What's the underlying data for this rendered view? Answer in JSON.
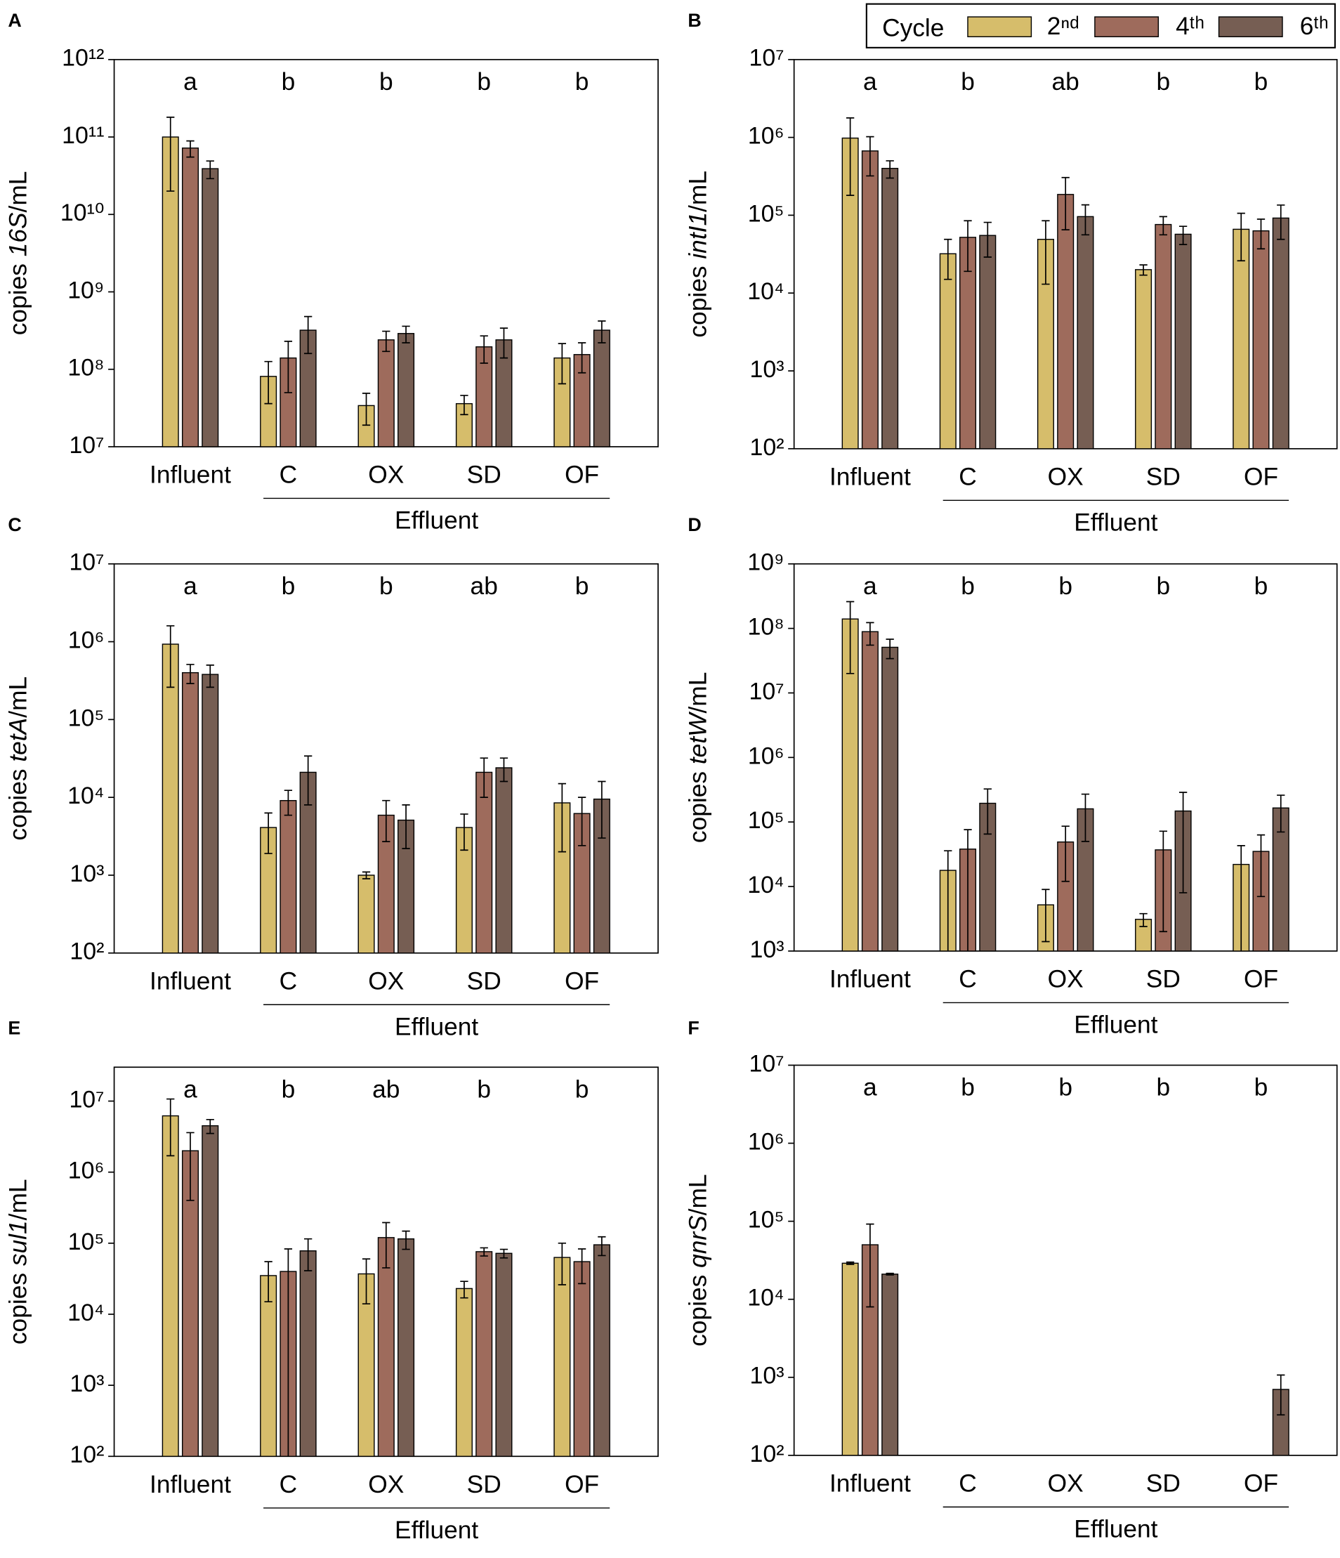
{
  "legend": {
    "title": "Cycle",
    "series": [
      {
        "name": "2ⁿᵈ",
        "color": "#d6bd6b"
      },
      {
        "name": "4ᵗʰ",
        "color": "#9e6b5c"
      },
      {
        "name": "6ᵗʰ",
        "color": "#765e53"
      }
    ]
  },
  "chart_data": [
    {
      "type": "bar",
      "panel": "A",
      "ylabel": [
        "copies ",
        "16S",
        "/mL"
      ],
      "log_scale": true,
      "categories": [
        "Influent",
        "C",
        "OX",
        "SD",
        "OF"
      ],
      "group_label": "Effluent",
      "annotations": [
        "a",
        "b",
        "b",
        "b",
        "b"
      ],
      "ylim": [
        10000000.0,
        1000000000000.0
      ],
      "yticks": [
        {
          "value": 10000000.0,
          "label": "10⁷"
        },
        {
          "value": 100000000.0,
          "label": "10⁸"
        },
        {
          "value": 1000000000.0,
          "label": "10⁹"
        },
        {
          "value": 10000000000.0,
          "label": "10¹⁰"
        },
        {
          "value": 100000000000.0,
          "label": "10¹¹"
        },
        {
          "value": 1000000000000.0,
          "label": "10¹²"
        }
      ],
      "series": [
        {
          "color": "#d6bd6b",
          "values": [
            100000000000.0,
            81000000.0,
            34000000.0,
            36000000.0,
            140000000.0
          ],
          "errors": [
            80000000000.0,
            45000000.0,
            15000000.0,
            10000000.0,
            75000000.0
          ]
        },
        {
          "color": "#9e6b5c",
          "values": [
            72000000000.0,
            140000000.0,
            240000000.0,
            195000000.0,
            155000000.0
          ],
          "errors": [
            17000000000.0,
            90000000.0,
            70000000.0,
            75000000.0,
            65000000.0
          ]
        },
        {
          "color": "#765e53",
          "values": [
            39000000000.0,
            320000000.0,
            290000000.0,
            240000000.0,
            320000000.0
          ],
          "errors": [
            10000000000.0,
            160000000.0,
            70000000.0,
            100000000.0,
            100000000.0
          ]
        }
      ]
    },
    {
      "type": "bar",
      "panel": "B",
      "ylabel": [
        "copies ",
        "intI1",
        "/mL"
      ],
      "log_scale": true,
      "categories": [
        "Influent",
        "C",
        "OX",
        "SD",
        "OF"
      ],
      "group_label": "Effluent",
      "annotations": [
        "a",
        "b",
        "ab",
        "b",
        "b"
      ],
      "ylim": [
        100.0,
        10000000.0
      ],
      "yticks": [
        {
          "value": 100.0,
          "label": "10²"
        },
        {
          "value": 1000.0,
          "label": "10³"
        },
        {
          "value": 10000.0,
          "label": "10⁴"
        },
        {
          "value": 100000.0,
          "label": "10⁵"
        },
        {
          "value": 1000000.0,
          "label": "10⁶"
        },
        {
          "value": 10000000.0,
          "label": "10⁷"
        }
      ],
      "series": [
        {
          "color": "#d6bd6b",
          "values": [
            980000.0,
            32000.0,
            49000.0,
            20000.0,
            66000.0
          ],
          "errors": [
            800000.0,
            17000.0,
            36000.0,
            3000.0,
            40000.0
          ]
        },
        {
          "color": "#9e6b5c",
          "values": [
            670000.0,
            52000.0,
            185000.0,
            76000.0,
            63000.0
          ],
          "errors": [
            350000.0,
            33000.0,
            120000.0,
            20000.0,
            26000.0
          ]
        },
        {
          "color": "#765e53",
          "values": [
            400000.0,
            55000.0,
            96000.0,
            57000.0,
            92000.0
          ],
          "errors": [
            100000.0,
            26000.0,
            40000.0,
            15000.0,
            43000.0
          ]
        }
      ]
    },
    {
      "type": "bar",
      "panel": "C",
      "ylabel": [
        "copies ",
        "tetA",
        "/mL"
      ],
      "log_scale": true,
      "categories": [
        "Influent",
        "C",
        "OX",
        "SD",
        "OF"
      ],
      "group_label": "Effluent",
      "annotations": [
        "a",
        "b",
        "b",
        "ab",
        "b"
      ],
      "ylim": [
        100.0,
        10000000.0
      ],
      "yticks": [
        {
          "value": 100.0,
          "label": "10²"
        },
        {
          "value": 1000.0,
          "label": "10³"
        },
        {
          "value": 10000.0,
          "label": "10⁴"
        },
        {
          "value": 100000.0,
          "label": "10⁵"
        },
        {
          "value": 1000000.0,
          "label": "10⁶"
        },
        {
          "value": 10000000.0,
          "label": "10⁷"
        }
      ],
      "series": [
        {
          "color": "#d6bd6b",
          "values": [
            930000.0,
            4100.0,
            1000.0,
            4100.0,
            8500.0
          ],
          "errors": [
            670000.0,
            2200.0,
            100.0,
            2000.0,
            6500.0
          ]
        },
        {
          "color": "#9e6b5c",
          "values": [
            400000.0,
            9100.0,
            5900.0,
            21000.0,
            6200.0
          ],
          "errors": [
            110000.0,
            3200.0,
            3200.0,
            11000.0,
            3800.0
          ]
        },
        {
          "color": "#765e53",
          "values": [
            380000.0,
            21000.0,
            5100.0,
            24000.0,
            9500.0
          ],
          "errors": [
            120000.0,
            13000.0,
            2900.0,
            8000.0,
            6500.0
          ]
        }
      ]
    },
    {
      "type": "bar",
      "panel": "D",
      "ylabel": [
        "copies ",
        "tetW",
        "/mL"
      ],
      "log_scale": true,
      "categories": [
        "Influent",
        "C",
        "OX",
        "SD",
        "OF"
      ],
      "group_label": "Effluent",
      "annotations": [
        "a",
        "b",
        "b",
        "b",
        "b"
      ],
      "ylim": [
        1000.0,
        1000000000.0
      ],
      "yticks": [
        {
          "value": 1000.0,
          "label": "10³"
        },
        {
          "value": 10000.0,
          "label": "10⁴"
        },
        {
          "value": 100000.0,
          "label": "10⁵"
        },
        {
          "value": 1000000.0,
          "label": "10⁶"
        },
        {
          "value": 10000000.0,
          "label": "10⁷"
        },
        {
          "value": 100000000.0,
          "label": "10⁸"
        },
        {
          "value": 1000000000.0,
          "label": "10⁹"
        }
      ],
      "series": [
        {
          "color": "#d6bd6b",
          "values": [
            140000000.0,
            17800.0,
            5200.0,
            3100.0,
            22000.0
          ],
          "errors": [
            120000000.0,
            18000.0,
            3800.0,
            700.0,
            21000.0
          ]
        },
        {
          "color": "#9e6b5c",
          "values": [
            89000000.0,
            38000.0,
            49000.0,
            37000.0,
            35000.0
          ],
          "errors": [
            34000000.0,
            38000.0,
            37000.0,
            35000.0,
            28000.0
          ]
        },
        {
          "color": "#765e53",
          "values": [
            51000000.0,
            195000.0,
            160000.0,
            148000.0,
            165000.0
          ],
          "errors": [
            17000000.0,
            130000.0,
            110000.0,
            140000.0,
            95000.0
          ]
        }
      ]
    },
    {
      "type": "bar",
      "panel": "E",
      "ylabel": [
        "copies ",
        "sul1",
        "/mL"
      ],
      "log_scale": true,
      "categories": [
        "Influent",
        "C",
        "OX",
        "SD",
        "OF"
      ],
      "group_label": "Effluent",
      "annotations": [
        "a",
        "b",
        "ab",
        "b",
        "b"
      ],
      "ylim": [
        100.0,
        30000000.0
      ],
      "yticks": [
        {
          "value": 100.0,
          "label": "10²"
        },
        {
          "value": 1000.0,
          "label": "10³"
        },
        {
          "value": 10000.0,
          "label": "10⁴"
        },
        {
          "value": 100000.0,
          "label": "10⁵"
        },
        {
          "value": 1000000.0,
          "label": "10⁶"
        },
        {
          "value": 10000000.0,
          "label": "10⁷"
        }
      ],
      "series": [
        {
          "color": "#d6bd6b",
          "values": [
            6200000.0,
            35000.0,
            37000.0,
            23000.0,
            63000.0
          ],
          "errors": [
            4500000.0,
            20000.0,
            23000.0,
            6000.0,
            37000.0
          ]
        },
        {
          "color": "#9e6b5c",
          "values": [
            2000000.0,
            40000.0,
            120000.0,
            76000.0,
            55000.0
          ],
          "errors": [
            1600000.0,
            43000.0,
            75000.0,
            10000.0,
            28000.0
          ]
        },
        {
          "color": "#765e53",
          "values": [
            4500000.0,
            78000.0,
            115000.0,
            72000.0,
            95000.0
          ],
          "errors": [
            1000000.0,
            37000.0,
            33000.0,
            10000.0,
            28000.0
          ]
        }
      ]
    },
    {
      "type": "bar",
      "panel": "F",
      "ylabel": [
        "copies ",
        "qnrS",
        "/mL"
      ],
      "log_scale": true,
      "categories": [
        "Influent",
        "C",
        "OX",
        "SD",
        "OF"
      ],
      "group_label": "Effluent",
      "annotations": [
        "a",
        "b",
        "b",
        "b",
        "b"
      ],
      "ylim": [
        100.0,
        10000000.0
      ],
      "yticks": [
        {
          "value": 100.0,
          "label": "10²"
        },
        {
          "value": 1000.0,
          "label": "10³"
        },
        {
          "value": 10000.0,
          "label": "10⁴"
        },
        {
          "value": 100000.0,
          "label": "10⁵"
        },
        {
          "value": 1000000.0,
          "label": "10⁶"
        },
        {
          "value": 10000000.0,
          "label": "10⁷"
        }
      ],
      "series": [
        {
          "color": "#d6bd6b",
          "values": [
            29000.0,
            null,
            null,
            null,
            null
          ],
          "errors": [
            1000.0,
            null,
            null,
            null,
            null
          ]
        },
        {
          "color": "#9e6b5c",
          "values": [
            50000.0,
            null,
            null,
            null,
            null
          ],
          "errors": [
            42000.0,
            null,
            null,
            null,
            null
          ]
        },
        {
          "color": "#765e53",
          "values": [
            21000.0,
            null,
            null,
            null,
            700.0
          ],
          "errors": [
            500.0,
            null,
            null,
            null,
            370.0
          ]
        }
      ]
    }
  ]
}
